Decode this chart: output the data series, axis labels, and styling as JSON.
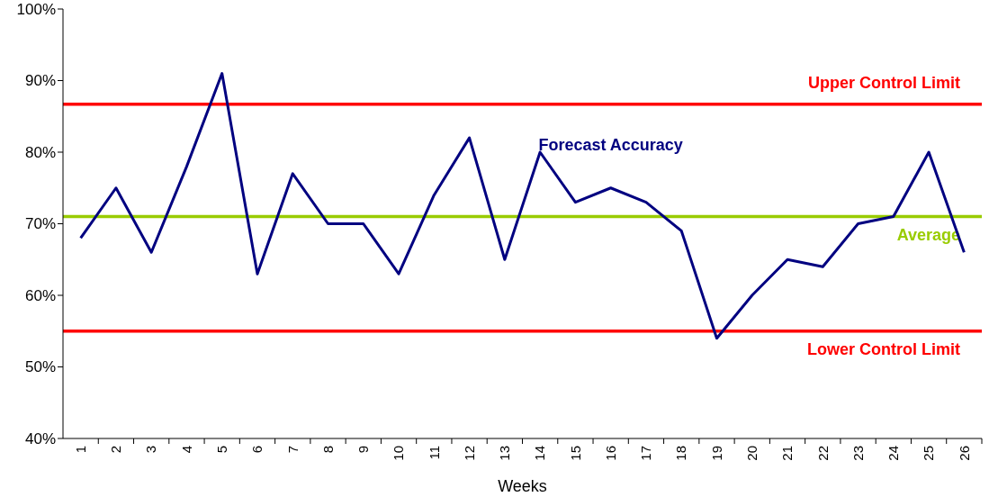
{
  "chart_data": {
    "type": "line",
    "xlabel": "Weeks",
    "categories": [
      "1",
      "2",
      "3",
      "4",
      "5",
      "6",
      "7",
      "8",
      "9",
      "10",
      "11",
      "12",
      "13",
      "14",
      "15",
      "16",
      "17",
      "18",
      "19",
      "20",
      "21",
      "22",
      "23",
      "24",
      "25",
      "26"
    ],
    "series": [
      {
        "name": "Forecast Accuracy",
        "color": "#000080",
        "values": [
          68,
          75,
          66,
          78,
          91,
          63,
          77,
          70,
          70,
          63,
          74,
          82,
          65,
          80,
          73,
          75,
          73,
          69,
          54,
          60,
          65,
          64,
          70,
          71,
          80,
          66
        ]
      }
    ],
    "ylim": [
      40,
      100
    ],
    "yticks": [
      {
        "value": 40,
        "label": "40%"
      },
      {
        "value": 50,
        "label": "50%"
      },
      {
        "value": 60,
        "label": "60%"
      },
      {
        "value": 70,
        "label": "70%"
      },
      {
        "value": 80,
        "label": "80%"
      },
      {
        "value": 90,
        "label": "90%"
      },
      {
        "value": 100,
        "label": "100%"
      }
    ],
    "ref_lines": [
      {
        "axis": "y",
        "value": 86.7,
        "label": "Upper Control Limit",
        "color": "#ff0000"
      },
      {
        "axis": "y",
        "value": 71,
        "label": "Average",
        "color": "#99cc00"
      },
      {
        "axis": "y",
        "value": 55,
        "label": "Lower Control Limit",
        "color": "#ff0000"
      }
    ],
    "grid": false,
    "marker": "none",
    "line_style": "solid"
  }
}
